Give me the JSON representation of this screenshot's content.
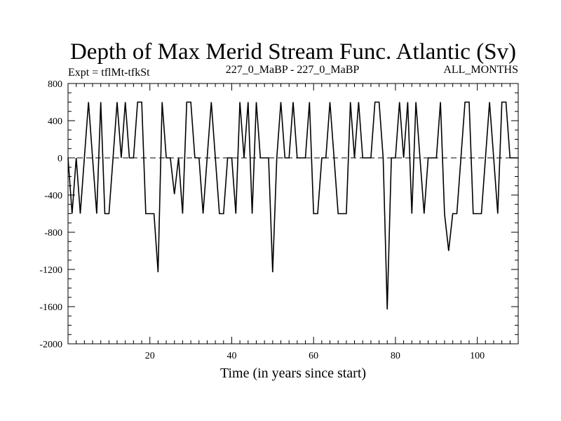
{
  "chart_data": {
    "type": "line",
    "title": "Depth of Max Merid Stream Func. Atlantic (Sv)",
    "subtitle_left": "Expt = tflMt-tfkSt",
    "subtitle_center": "227_0_MaBP - 227_0_MaBP",
    "subtitle_right": "ALL_MONTHS",
    "xlabel": "Time (in years since start)",
    "ylabel": "",
    "xlim": [
      0,
      110
    ],
    "ylim": [
      -2000,
      800
    ],
    "x_ticks": [
      20,
      40,
      60,
      80,
      100
    ],
    "y_ticks": [
      800,
      400,
      0,
      -400,
      -800,
      -1200,
      -1600,
      -2000
    ],
    "reference_line": {
      "y": 0,
      "style": "dashed"
    },
    "grid": false,
    "series": [
      {
        "x": [
          0,
          1,
          2,
          3,
          4,
          5,
          6,
          7,
          8,
          9,
          10,
          11,
          12,
          13,
          14,
          15,
          16,
          17,
          18,
          19,
          20,
          21,
          22,
          23,
          24,
          25,
          26,
          27,
          28,
          29,
          30,
          31,
          32,
          33,
          34,
          35,
          36,
          37,
          38,
          39,
          40,
          41,
          42,
          43,
          44,
          45,
          46,
          47,
          48,
          49,
          50,
          51,
          52,
          53,
          54,
          55,
          56,
          57,
          58,
          59,
          60,
          61,
          62,
          63,
          64,
          65,
          66,
          67,
          68,
          69,
          70,
          71,
          72,
          73,
          74,
          75,
          76,
          77,
          78,
          79,
          80,
          81,
          82,
          83,
          84,
          85,
          86,
          87,
          88,
          89,
          90,
          91,
          92,
          93,
          94,
          95,
          96,
          97,
          98,
          99,
          100,
          101,
          102,
          103,
          104,
          105,
          106,
          107,
          108,
          109,
          110
        ],
        "values": [
          0,
          -600,
          0,
          -600,
          0,
          600,
          0,
          -600,
          600,
          -600,
          -600,
          0,
          600,
          0,
          600,
          0,
          0,
          600,
          600,
          -600,
          -600,
          -600,
          -1230,
          600,
          0,
          0,
          -390,
          0,
          -600,
          600,
          600,
          0,
          0,
          -600,
          0,
          600,
          0,
          -600,
          -600,
          0,
          0,
          -600,
          600,
          0,
          600,
          -600,
          600,
          0,
          0,
          0,
          -1230,
          0,
          600,
          0,
          0,
          600,
          0,
          0,
          0,
          600,
          -600,
          -600,
          0,
          0,
          600,
          0,
          -600,
          -600,
          -600,
          600,
          0,
          600,
          0,
          0,
          0,
          600,
          600,
          0,
          -1630,
          0,
          0,
          600,
          0,
          600,
          -600,
          600,
          0,
          -600,
          0,
          0,
          0,
          600,
          -600,
          -1000,
          -600,
          -600,
          0,
          600,
          600,
          -600,
          -600,
          -600,
          0,
          600,
          0,
          -600,
          600,
          600,
          0,
          0,
          0
        ]
      }
    ]
  }
}
